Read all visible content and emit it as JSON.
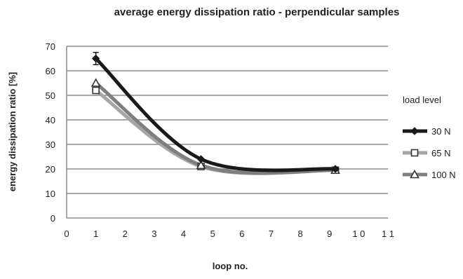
{
  "chart_data": {
    "type": "line",
    "title": "average energy dissipation ratio - perpendicular samples",
    "xlabel": "loop no.",
    "ylabel": "energy dissipation ratio [%]",
    "xlim": [
      0,
      11
    ],
    "ylim": [
      0,
      70
    ],
    "x_ticks": [
      "0",
      "1",
      "2",
      "3",
      "4",
      "5",
      "6",
      "7",
      "8",
      "9",
      "1 0",
      "1 1"
    ],
    "y_ticks": [
      "0",
      "10",
      "20",
      "30",
      "40",
      "50",
      "60",
      "70"
    ],
    "grid": "horizontal",
    "legend_title": "load level",
    "legend_position": "right",
    "series": [
      {
        "name": "30 N",
        "marker": "diamond",
        "color": "#1a1a1a",
        "x": [
          1,
          4.6,
          9.2
        ],
        "y": [
          65,
          24,
          20
        ],
        "err": [
          2.5,
          0,
          0
        ]
      },
      {
        "name": "65 N",
        "marker": "square",
        "color": "#a6a6a6",
        "x": [
          1,
          4.6,
          9.2
        ],
        "y": [
          52,
          21,
          19.5
        ],
        "err": [
          0,
          0,
          0
        ]
      },
      {
        "name": "100 N",
        "marker": "triangle",
        "color": "#7f7f7f",
        "x": [
          1,
          4.6,
          9.2
        ],
        "y": [
          55,
          21.5,
          19.5
        ],
        "err": [
          0,
          0,
          0
        ]
      }
    ]
  }
}
